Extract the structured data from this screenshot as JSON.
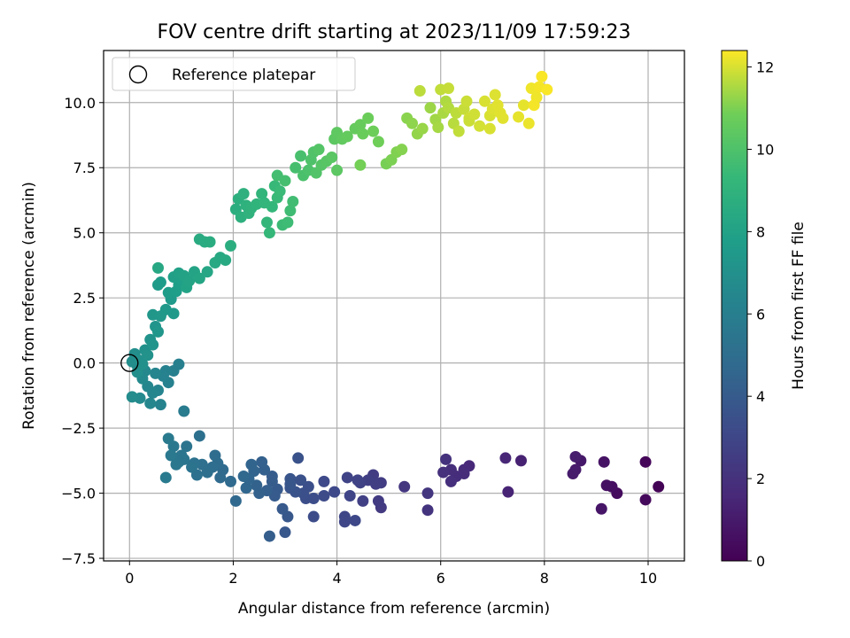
{
  "chart_data": {
    "type": "scatter",
    "title": "FOV centre drift starting at 2023/11/09 17:59:23",
    "xlabel": "Angular distance from reference (arcmin)",
    "ylabel": "Rotation from reference (arcmin)",
    "xlim": [
      -0.5,
      10.7
    ],
    "ylim": [
      -7.6,
      12
    ],
    "xticks": [
      0,
      2,
      4,
      6,
      8,
      10
    ],
    "yticks": [
      -7.5,
      -5.0,
      -2.5,
      0.0,
      2.5,
      5.0,
      7.5,
      10.0
    ],
    "xtick_labels": [
      "0",
      "2",
      "4",
      "6",
      "8",
      "10"
    ],
    "ytick_labels": [
      "−7.5",
      "−5.0",
      "−2.5",
      "0.0",
      "2.5",
      "5.0",
      "7.5",
      "10.0"
    ],
    "grid": true,
    "legend": {
      "position": "top-left",
      "entries": [
        "Reference platepar"
      ]
    },
    "reference_point": {
      "x": 0,
      "y": 0
    },
    "colorbar": {
      "label": "Hours from first FF file",
      "colormap": "viridis",
      "range": [
        0,
        12.4
      ],
      "ticks": [
        0,
        2,
        4,
        6,
        8,
        10,
        12
      ],
      "tick_labels": [
        "0",
        "2",
        "4",
        "6",
        "8",
        "10",
        "12"
      ]
    },
    "points": [
      [
        10.2,
        -4.75,
        0.1
      ],
      [
        9.95,
        -3.8,
        0.2
      ],
      [
        9.95,
        -5.25,
        0.3
      ],
      [
        9.4,
        -5.0,
        0.4
      ],
      [
        9.3,
        -4.75,
        0.5
      ],
      [
        9.2,
        -4.7,
        0.6
      ],
      [
        9.15,
        -3.8,
        0.7
      ],
      [
        9.1,
        -5.6,
        0.8
      ],
      [
        8.7,
        -3.75,
        0.9
      ],
      [
        8.6,
        -4.1,
        1.0
      ],
      [
        8.55,
        -4.25,
        1.05
      ],
      [
        8.6,
        -3.6,
        1.1
      ],
      [
        7.55,
        -3.75,
        1.3
      ],
      [
        7.3,
        -4.95,
        1.4
      ],
      [
        7.25,
        -3.65,
        1.5
      ],
      [
        6.55,
        -3.95,
        1.6
      ],
      [
        6.45,
        -4.1,
        1.7
      ],
      [
        6.45,
        -4.25,
        1.75
      ],
      [
        6.3,
        -4.35,
        1.8
      ],
      [
        6.2,
        -4.1,
        1.85
      ],
      [
        6.2,
        -4.55,
        1.9
      ],
      [
        6.05,
        -4.2,
        1.95
      ],
      [
        6.1,
        -3.7,
        2.0
      ],
      [
        5.75,
        -5.65,
        2.1
      ],
      [
        5.75,
        -5.0,
        2.15
      ],
      [
        5.3,
        -4.75,
        2.2
      ],
      [
        4.85,
        -5.55,
        2.4
      ],
      [
        4.8,
        -5.3,
        2.45
      ],
      [
        4.85,
        -4.6,
        2.5
      ],
      [
        4.7,
        -4.3,
        2.55
      ],
      [
        4.75,
        -4.65,
        2.6
      ],
      [
        4.6,
        -4.5,
        2.65
      ],
      [
        4.5,
        -5.3,
        2.7
      ],
      [
        4.45,
        -4.6,
        2.75
      ],
      [
        4.4,
        -4.5,
        2.8
      ],
      [
        4.2,
        -4.4,
        2.85
      ],
      [
        4.25,
        -5.1,
        2.9
      ],
      [
        4.15,
        -5.9,
        2.95
      ],
      [
        4.15,
        -6.1,
        3.0
      ],
      [
        4.35,
        -6.05,
        3.05
      ],
      [
        3.95,
        -4.95,
        3.1
      ],
      [
        3.75,
        -4.55,
        3.15
      ],
      [
        3.75,
        -5.1,
        3.2
      ],
      [
        3.55,
        -5.9,
        3.25
      ],
      [
        3.55,
        -5.2,
        3.3
      ],
      [
        3.4,
        -5.2,
        3.35
      ],
      [
        3.45,
        -4.75,
        3.4
      ],
      [
        3.35,
        -5.0,
        3.45
      ],
      [
        3.3,
        -4.5,
        3.5
      ],
      [
        3.25,
        -3.65,
        3.55
      ],
      [
        3.2,
        -4.95,
        3.6
      ],
      [
        3.1,
        -4.8,
        3.65
      ],
      [
        3.1,
        -4.45,
        3.7
      ],
      [
        3.1,
        -4.65,
        3.75
      ],
      [
        3.0,
        -6.5,
        3.8
      ],
      [
        3.05,
        -5.9,
        3.85
      ],
      [
        2.95,
        -5.6,
        3.9
      ],
      [
        2.85,
        -4.85,
        3.95
      ],
      [
        2.8,
        -5.1,
        4.0
      ],
      [
        2.75,
        -4.55,
        4.05
      ],
      [
        2.75,
        -4.35,
        4.1
      ],
      [
        2.7,
        -6.65,
        4.15
      ],
      [
        2.65,
        -4.9,
        4.2
      ],
      [
        2.6,
        -4.1,
        4.25
      ],
      [
        2.55,
        -3.8,
        4.3
      ],
      [
        2.5,
        -5.0,
        4.35
      ],
      [
        2.45,
        -4.7,
        4.4
      ],
      [
        2.4,
        -4.15,
        4.45
      ],
      [
        2.35,
        -3.9,
        4.5
      ],
      [
        2.3,
        -4.45,
        4.55
      ],
      [
        2.25,
        -4.8,
        4.6
      ],
      [
        2.2,
        -4.35,
        4.65
      ],
      [
        2.05,
        -5.3,
        4.7
      ],
      [
        1.95,
        -4.55,
        4.75
      ],
      [
        1.8,
        -4.1,
        4.8
      ],
      [
        1.75,
        -4.4,
        4.85
      ],
      [
        1.7,
        -3.85,
        4.9
      ],
      [
        1.65,
        -3.55,
        4.95
      ],
      [
        1.6,
        -4.0,
        5.0
      ],
      [
        1.5,
        -4.2,
        5.05
      ],
      [
        1.4,
        -3.9,
        5.1
      ],
      [
        1.35,
        -2.8,
        5.15
      ],
      [
        1.3,
        -4.3,
        5.2
      ],
      [
        1.25,
        -3.85,
        5.25
      ],
      [
        1.2,
        -4.0,
        5.3
      ],
      [
        1.1,
        -3.2,
        5.35
      ],
      [
        1.05,
        -3.7,
        5.4
      ],
      [
        1.0,
        -3.55,
        5.45
      ],
      [
        0.95,
        -3.8,
        5.5
      ],
      [
        0.9,
        -3.9,
        5.55
      ],
      [
        0.85,
        -3.2,
        5.6
      ],
      [
        0.8,
        -3.55,
        5.65
      ],
      [
        0.75,
        -2.9,
        5.7
      ],
      [
        0.7,
        -4.4,
        5.75
      ],
      [
        1.05,
        -1.85,
        5.8
      ],
      [
        0.95,
        -0.05,
        6.0
      ],
      [
        0.85,
        -0.3,
        6.05
      ],
      [
        0.75,
        -0.75,
        6.1
      ],
      [
        0.7,
        -0.3,
        6.15
      ],
      [
        0.65,
        -0.5,
        6.2
      ],
      [
        0.6,
        -1.6,
        6.25
      ],
      [
        0.55,
        -1.05,
        6.3
      ],
      [
        0.5,
        -0.4,
        6.35
      ],
      [
        0.45,
        -1.15,
        6.4
      ],
      [
        0.4,
        -1.55,
        6.45
      ],
      [
        0.35,
        -0.9,
        6.5
      ],
      [
        0.3,
        -0.3,
        6.55
      ],
      [
        0.25,
        -0.6,
        6.6
      ],
      [
        0.2,
        -1.35,
        6.65
      ],
      [
        0.15,
        -0.1,
        6.7
      ],
      [
        0.05,
        -1.3,
        6.75
      ],
      [
        0.05,
        0.05,
        6.8
      ],
      [
        0.1,
        0.35,
        6.85
      ],
      [
        0.15,
        -0.35,
        6.9
      ],
      [
        0.2,
        0.1,
        6.95
      ],
      [
        0.25,
        -0.05,
        7.0
      ],
      [
        0.3,
        0.5,
        7.05
      ],
      [
        0.35,
        0.3,
        7.1
      ],
      [
        0.4,
        0.9,
        7.15
      ],
      [
        0.45,
        0.7,
        7.2
      ],
      [
        0.5,
        1.4,
        7.25
      ],
      [
        0.55,
        1.2,
        7.3
      ],
      [
        0.45,
        1.85,
        7.35
      ],
      [
        0.6,
        1.8,
        7.4
      ],
      [
        0.7,
        2.05,
        7.45
      ],
      [
        0.85,
        1.9,
        7.5
      ],
      [
        0.8,
        2.45,
        7.55
      ],
      [
        0.55,
        3.0,
        7.6
      ],
      [
        0.6,
        3.1,
        7.65
      ],
      [
        0.75,
        2.7,
        7.7
      ],
      [
        0.9,
        2.75,
        7.75
      ],
      [
        0.95,
        3.0,
        7.8
      ],
      [
        1.0,
        3.25,
        7.85
      ],
      [
        0.85,
        3.3,
        7.9
      ],
      [
        0.95,
        3.45,
        7.95
      ],
      [
        1.05,
        3.35,
        8.0
      ],
      [
        1.1,
        2.9,
        8.05
      ],
      [
        1.15,
        3.15,
        8.1
      ],
      [
        1.25,
        3.5,
        8.15
      ],
      [
        1.35,
        3.25,
        8.2
      ],
      [
        1.5,
        3.5,
        8.25
      ],
      [
        0.55,
        3.65,
        8.3
      ],
      [
        1.65,
        3.85,
        8.35
      ],
      [
        1.75,
        4.05,
        8.4
      ],
      [
        1.85,
        3.95,
        8.45
      ],
      [
        1.35,
        4.75,
        8.5
      ],
      [
        1.45,
        4.65,
        8.55
      ],
      [
        1.55,
        4.65,
        8.6
      ],
      [
        1.95,
        4.5,
        8.65
      ],
      [
        2.05,
        5.9,
        8.7
      ],
      [
        2.1,
        6.3,
        8.75
      ],
      [
        2.15,
        5.6,
        8.8
      ],
      [
        2.2,
        6.5,
        8.85
      ],
      [
        2.25,
        6.05,
        8.9
      ],
      [
        2.3,
        5.75,
        8.95
      ],
      [
        2.35,
        5.95,
        9.0
      ],
      [
        2.45,
        6.1,
        9.05
      ],
      [
        2.55,
        6.5,
        9.1
      ],
      [
        2.6,
        6.15,
        9.15
      ],
      [
        2.65,
        5.4,
        9.2
      ],
      [
        2.75,
        6.0,
        9.25
      ],
      [
        2.7,
        5.0,
        9.3
      ],
      [
        2.8,
        6.8,
        9.35
      ],
      [
        2.85,
        6.35,
        9.4
      ],
      [
        2.9,
        6.6,
        9.45
      ],
      [
        2.95,
        5.3,
        9.5
      ],
      [
        3.05,
        5.4,
        9.55
      ],
      [
        3.1,
        5.85,
        9.6
      ],
      [
        3.15,
        6.2,
        9.65
      ],
      [
        2.85,
        7.2,
        9.7
      ],
      [
        3.0,
        7.0,
        9.75
      ],
      [
        3.2,
        7.5,
        9.8
      ],
      [
        3.3,
        7.95,
        9.85
      ],
      [
        3.35,
        7.2,
        9.9
      ],
      [
        3.45,
        7.4,
        9.95
      ],
      [
        3.5,
        7.8,
        10.0
      ],
      [
        3.55,
        8.1,
        10.05
      ],
      [
        3.6,
        7.3,
        10.1
      ],
      [
        3.65,
        8.2,
        10.15
      ],
      [
        3.7,
        7.6,
        10.2
      ],
      [
        3.8,
        7.75,
        10.25
      ],
      [
        3.9,
        7.9,
        10.3
      ],
      [
        4.0,
        7.4,
        10.35
      ],
      [
        3.95,
        8.6,
        10.4
      ],
      [
        4.0,
        8.85,
        10.45
      ],
      [
        4.1,
        8.6,
        10.5
      ],
      [
        4.2,
        8.7,
        10.55
      ],
      [
        4.35,
        9.0,
        10.6
      ],
      [
        4.45,
        9.15,
        10.65
      ],
      [
        4.5,
        8.8,
        10.7
      ],
      [
        4.6,
        9.4,
        10.75
      ],
      [
        4.7,
        8.9,
        10.8
      ],
      [
        4.8,
        8.5,
        10.85
      ],
      [
        4.45,
        7.6,
        10.9
      ],
      [
        4.95,
        7.65,
        10.95
      ],
      [
        5.05,
        7.8,
        11.0
      ],
      [
        5.15,
        8.1,
        11.05
      ],
      [
        5.25,
        8.2,
        11.1
      ],
      [
        5.35,
        9.4,
        11.15
      ],
      [
        5.45,
        9.2,
        11.2
      ],
      [
        5.55,
        8.8,
        11.25
      ],
      [
        5.65,
        9.0,
        11.3
      ],
      [
        5.8,
        9.8,
        11.35
      ],
      [
        5.9,
        9.35,
        11.4
      ],
      [
        5.95,
        9.05,
        11.45
      ],
      [
        6.05,
        9.6,
        11.5
      ],
      [
        6.1,
        10.05,
        11.55
      ],
      [
        6.15,
        9.8,
        11.6
      ],
      [
        6.25,
        9.2,
        11.65
      ],
      [
        6.3,
        9.6,
        11.7
      ],
      [
        6.35,
        8.9,
        11.75
      ],
      [
        6.45,
        9.75,
        11.8
      ],
      [
        6.5,
        10.05,
        11.85
      ],
      [
        6.55,
        9.4,
        11.9
      ],
      [
        5.6,
        10.45,
        11.7
      ],
      [
        6.0,
        10.5,
        11.75
      ],
      [
        6.15,
        10.55,
        11.8
      ],
      [
        6.55,
        9.3,
        11.85
      ],
      [
        6.65,
        9.55,
        11.9
      ],
      [
        6.75,
        9.1,
        11.95
      ],
      [
        6.85,
        10.05,
        12.0
      ],
      [
        6.95,
        9.5,
        12.0
      ],
      [
        7.0,
        9.75,
        12.05
      ],
      [
        7.05,
        10.3,
        12.05
      ],
      [
        7.1,
        9.9,
        12.1
      ],
      [
        7.15,
        9.6,
        12.1
      ],
      [
        7.2,
        9.4,
        12.1
      ],
      [
        7.5,
        9.45,
        12.15
      ],
      [
        7.6,
        9.9,
        12.15
      ],
      [
        7.7,
        9.2,
        12.2
      ],
      [
        7.75,
        10.55,
        12.25
      ],
      [
        7.85,
        10.2,
        12.25
      ],
      [
        7.9,
        10.6,
        12.3
      ],
      [
        7.95,
        11.0,
        12.35
      ],
      [
        8.05,
        10.5,
        12.35
      ],
      [
        7.8,
        9.9,
        12.3
      ],
      [
        6.95,
        9.0,
        12.0
      ]
    ]
  }
}
